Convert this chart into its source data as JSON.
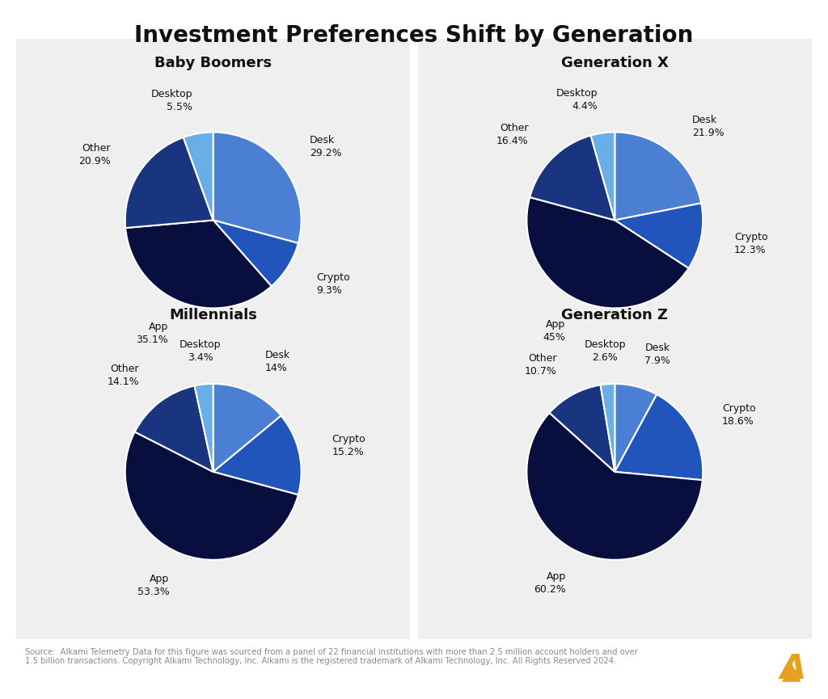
{
  "title": "Investment Preferences Shift by Generation",
  "background_color": "#ffffff",
  "panel_background": "#efefef",
  "panels": [
    {
      "title": "Baby Boomers",
      "labels": [
        "Desk",
        "Crypto",
        "App",
        "Other",
        "Desktop"
      ],
      "values": [
        29.2,
        9.3,
        35.1,
        20.9,
        5.5
      ],
      "label_pcts": [
        "29.2%",
        "9.3%",
        "35.1%",
        "20.9%",
        "5.5%"
      ],
      "startangle": 90
    },
    {
      "title": "Generation X",
      "labels": [
        "Desk",
        "Crypto",
        "App",
        "Other",
        "Desktop"
      ],
      "values": [
        21.9,
        12.3,
        45.0,
        16.4,
        4.4
      ],
      "label_pcts": [
        "21.9%",
        "12.3%",
        "45%",
        "16.4%",
        "4.4%"
      ],
      "startangle": 90
    },
    {
      "title": "Millennials",
      "labels": [
        "Desk",
        "Crypto",
        "App",
        "Other",
        "Desktop"
      ],
      "values": [
        14.0,
        15.2,
        53.3,
        14.1,
        3.4
      ],
      "label_pcts": [
        "14%",
        "15.2%",
        "53.3%",
        "14.1%",
        "3.4%"
      ],
      "startangle": 90
    },
    {
      "title": "Generation Z",
      "labels": [
        "Desk",
        "Crypto",
        "App",
        "Other",
        "Desktop"
      ],
      "values": [
        7.9,
        18.6,
        60.2,
        10.7,
        2.6
      ],
      "label_pcts": [
        "7.9%",
        "18.6%",
        "60.2%",
        "10.7%",
        "2.6%"
      ],
      "startangle": 90
    }
  ],
  "slice_colors": {
    "Desk": "#4a7fd4",
    "Crypto": "#2255bb",
    "App": "#080f3e",
    "Other": "#1a3580",
    "Desktop": "#6aaee8"
  },
  "source_text": "Source:  Alkami Telemetry Data for this figure was sourced from a panel of 22 financial institutions with more than 2.5 million account holders and over\n1.5 billion transactions. Copyright Alkami Technology, Inc. Alkami is the registered trademark of Alkami Technology, Inc. All Rights Reserved 2024.",
  "alkami_color": "#e8a020"
}
